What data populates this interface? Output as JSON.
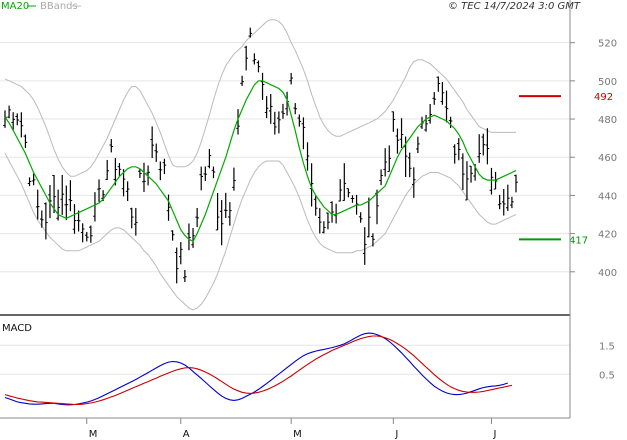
{
  "header": {
    "ma_label": "MA20",
    "bb_label": "BBands",
    "source": "© TEC 14/7/2024 3:0 GMT"
  },
  "colors": {
    "price": "#000000",
    "ma": "#00aa00",
    "bbands": "#bbbbbb",
    "macd": "#0000cc",
    "signal": "#cc0000",
    "grid": "#e6e6e6",
    "resistance": "#cc0000",
    "support": "#009900"
  },
  "chart_data": [
    {
      "type": "ohlc",
      "title": "",
      "y_ticks": [
        400,
        420,
        440,
        460,
        480,
        500,
        520
      ],
      "ylim": [
        380,
        535
      ],
      "x_ticks": [
        "M",
        "A",
        "M",
        "J",
        "J"
      ],
      "x_tick_index": [
        20,
        43,
        70,
        95,
        119
      ],
      "levels": [
        {
          "name": "resistance",
          "value": 492,
          "label": "492"
        },
        {
          "name": "support",
          "value": 417,
          "label": "417"
        }
      ],
      "series": [
        {
          "name": "MA20",
          "values": [
            481,
            478,
            474,
            470,
            466,
            462,
            457,
            452,
            448,
            444,
            440,
            436,
            433,
            430,
            429,
            428,
            429,
            430,
            431,
            432,
            433,
            434,
            435,
            436,
            438,
            441,
            444,
            447,
            450,
            452,
            454,
            455,
            455,
            454,
            452,
            450,
            448,
            446,
            443,
            440,
            437,
            432,
            427,
            422,
            419,
            417,
            416,
            420,
            425,
            430,
            436,
            442,
            448,
            454,
            460,
            467,
            474,
            480,
            485,
            490,
            494,
            498,
            500,
            500,
            499,
            498,
            497,
            496,
            494,
            490,
            482,
            474,
            465,
            457,
            450,
            444,
            440,
            437,
            434,
            432,
            430,
            430,
            431,
            432,
            433,
            434,
            435,
            435,
            436,
            437,
            439,
            441,
            443,
            445,
            450,
            455,
            460,
            464,
            467,
            470,
            473,
            476,
            478,
            480,
            481,
            482,
            481,
            480,
            479,
            477,
            475,
            472,
            468,
            463,
            459,
            455,
            451,
            449,
            448,
            448,
            448,
            449,
            450,
            451,
            452,
            453
          ]
        },
        {
          "name": "BB upper",
          "values": [
            501,
            500,
            499,
            498,
            497,
            495,
            493,
            490,
            486,
            481,
            476,
            470,
            464,
            459,
            455,
            452,
            450,
            450,
            451,
            452,
            453,
            455,
            458,
            462,
            466,
            470,
            475,
            480,
            485,
            490,
            494,
            497,
            497,
            495,
            491,
            487,
            483,
            478,
            473,
            467,
            461,
            456,
            455,
            455,
            455,
            456,
            458,
            462,
            468,
            475,
            482,
            490,
            497,
            503,
            508,
            511,
            514,
            516,
            518,
            521,
            523,
            525,
            527,
            529,
            531,
            532,
            532,
            531,
            529,
            525,
            520,
            516,
            511,
            506,
            500,
            493,
            487,
            481,
            477,
            474,
            472,
            471,
            471,
            472,
            473,
            474,
            475,
            476,
            477,
            478,
            479,
            480,
            482,
            484,
            487,
            490,
            494,
            498,
            502,
            507,
            510,
            511,
            511,
            510,
            509,
            507,
            505,
            503,
            501,
            498,
            495,
            492,
            489,
            485,
            482,
            479,
            476,
            475,
            474,
            473,
            473,
            473,
            473,
            473,
            473,
            473
          ]
        },
        {
          "name": "BB lower",
          "values": [
            462,
            458,
            454,
            450,
            446,
            441,
            436,
            431,
            427,
            424,
            421,
            418,
            416,
            414,
            412,
            411,
            411,
            411,
            411,
            412,
            413,
            414,
            415,
            416,
            418,
            420,
            422,
            423,
            423,
            422,
            420,
            418,
            416,
            414,
            411,
            409,
            406,
            403,
            399,
            396,
            393,
            390,
            387,
            385,
            383,
            381,
            380,
            381,
            383,
            386,
            390,
            394,
            399,
            405,
            411,
            418,
            425,
            432,
            438,
            443,
            448,
            452,
            455,
            457,
            458,
            458,
            458,
            458,
            456,
            452,
            448,
            444,
            439,
            433,
            427,
            422,
            418,
            415,
            413,
            412,
            411,
            410,
            410,
            410,
            410,
            410,
            411,
            411,
            412,
            413,
            414,
            416,
            418,
            420,
            424,
            428,
            432,
            436,
            440,
            443,
            446,
            448,
            450,
            451,
            452,
            452,
            452,
            451,
            450,
            449,
            447,
            445,
            442,
            439,
            436,
            433,
            430,
            428,
            426,
            425,
            425,
            426,
            427,
            428,
            429,
            430
          ]
        }
      ]
    },
    {
      "type": "line",
      "title": "MACD",
      "y_ticks": [
        5,
        15
      ],
      "y_tick_labels": [
        "0.5",
        "1.5"
      ],
      "ylim": [
        -8,
        22
      ],
      "series": [
        {
          "name": "MACD",
          "values": [
            -3,
            -3.5,
            -4,
            -4.5,
            -4.8,
            -5,
            -5.2,
            -5.3,
            -5.3,
            -5.2,
            -5.1,
            -5,
            -5,
            -5.2,
            -5.4,
            -5.5,
            -5.5,
            -5.4,
            -5.2,
            -4.9,
            -4.6,
            -4.2,
            -3.7,
            -3.1,
            -2.4,
            -1.7,
            -1,
            -0.3,
            0.4,
            1.1,
            1.8,
            2.5,
            3.2,
            4,
            4.8,
            5.6,
            6.4,
            7.2,
            8,
            8.7,
            9.2,
            9.4,
            9.3,
            8.9,
            8.2,
            7.2,
            6,
            4.8,
            3.6,
            2.3,
            1,
            -0.2,
            -1.4,
            -2.5,
            -3.3,
            -3.8,
            -4,
            -3.8,
            -3.3,
            -2.6,
            -1.9,
            -1.1,
            -0.2,
            0.8,
            1.8,
            2.9,
            4,
            5.1,
            6.2,
            7.3,
            8.4,
            9.5,
            10.5,
            11.4,
            12.1,
            12.6,
            13,
            13.3,
            13.6,
            13.9,
            14.2,
            14.6,
            15,
            15.5,
            16.2,
            17,
            17.8,
            18.5,
            19,
            19.2,
            19.1,
            18.7,
            18.1,
            17.3,
            16.3,
            15.1,
            13.8,
            12.4,
            10.9,
            9.4,
            7.8,
            6.3,
            4.8,
            3.4,
            2.1,
            0.9,
            0,
            -0.8,
            -1.4,
            -1.8,
            -2,
            -2,
            -1.8,
            -1.5,
            -1,
            -0.5,
            0,
            0.4,
            0.7,
            0.9,
            1,
            1.2,
            1.5,
            2
          ]
        },
        {
          "name": "Signal",
          "values": [
            -2,
            -2.4,
            -2.8,
            -3.2,
            -3.5,
            -3.8,
            -4.1,
            -4.3,
            -4.5,
            -4.6,
            -4.7,
            -4.8,
            -4.9,
            -5,
            -5.1,
            -5.2,
            -5.3,
            -5.4,
            -5.4,
            -5.3,
            -5.1,
            -4.9,
            -4.6,
            -4.2,
            -3.8,
            -3.3,
            -2.8,
            -2.3,
            -1.7,
            -1.1,
            -0.5,
            0.1,
            0.7,
            1.3,
            1.9,
            2.5,
            3.1,
            3.7,
            4.3,
            4.9,
            5.5,
            6,
            6.5,
            6.9,
            7.2,
            7.3,
            7.2,
            6.9,
            6.4,
            5.8,
            5.1,
            4.3,
            3.4,
            2.5,
            1.6,
            0.7,
            -0.1,
            -0.7,
            -1.2,
            -1.5,
            -1.6,
            -1.5,
            -1.2,
            -0.8,
            -0.3,
            0.3,
            1,
            1.8,
            2.6,
            3.5,
            4.4,
            5.4,
            6.4,
            7.4,
            8.4,
            9.3,
            10.2,
            11,
            11.8,
            12.5,
            13.2,
            13.8,
            14.4,
            15,
            15.6,
            16.2,
            16.8,
            17.3,
            17.7,
            18,
            18.2,
            18.2,
            18,
            17.6,
            17.1,
            16.4,
            15.6,
            14.7,
            13.7,
            12.6,
            11.4,
            10.1,
            8.8,
            7.5,
            6.2,
            4.9,
            3.7,
            2.6,
            1.6,
            0.7,
            0,
            -0.5,
            -0.9,
            -1.1,
            -1.2,
            -1.2,
            -1.1,
            -0.9,
            -0.6,
            -0.3,
            0,
            0.3,
            0.6,
            0.9,
            1.2
          ]
        }
      ]
    }
  ]
}
